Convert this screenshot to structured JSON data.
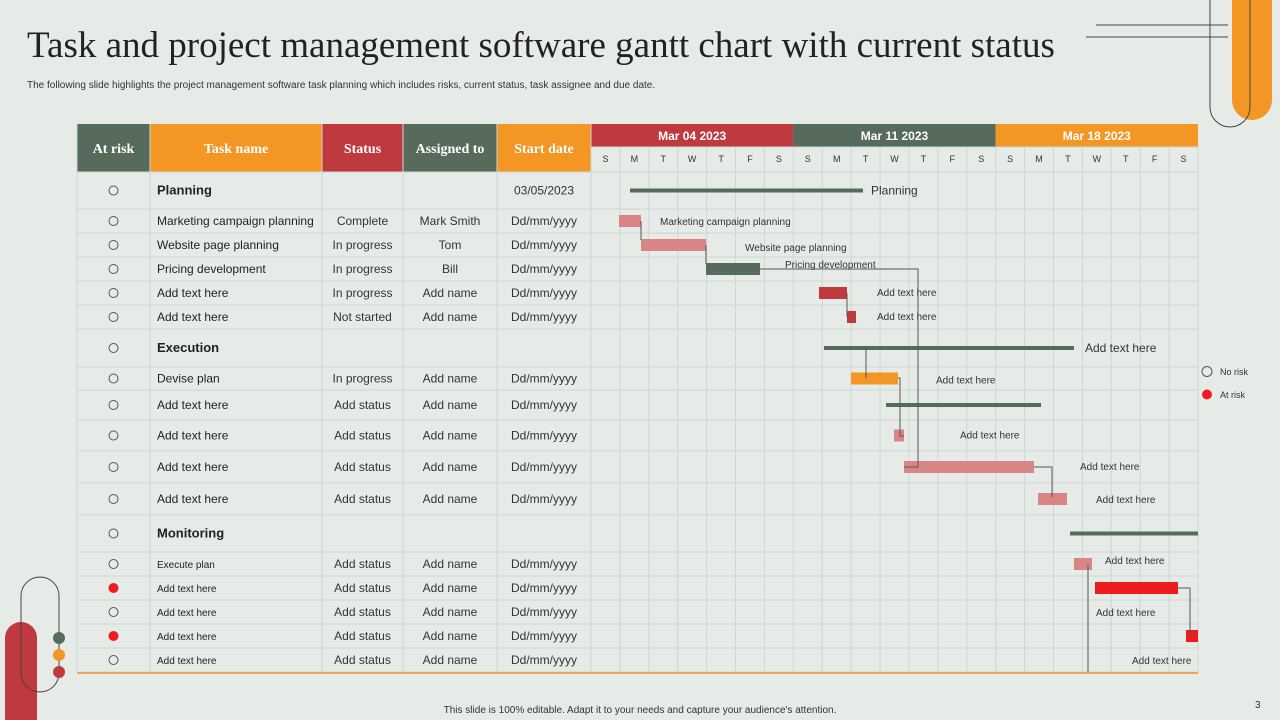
{
  "slide": {
    "title": "Task and project management software gantt chart with current status",
    "subtitle": "The following slide highlights the project management software task planning which includes risks, current status, task assignee and due date.",
    "footer": "This slide is 100% editable. Adapt it to your needs and capture your audience's attention.",
    "page_number": "3"
  },
  "colors": {
    "green_dark": "#566b5c",
    "orange": "#f39623",
    "red": "#be3a3e",
    "pink": "#d98585",
    "bright_red": "#ee1c1c"
  },
  "headers": {
    "at_risk": "At risk",
    "task_name": "Task name",
    "status": "Status",
    "assigned_to": "Assigned to",
    "start_date": "Start date"
  },
  "weeks": [
    "Mar 04 2023",
    "Mar 11 2023",
    "Mar 18 2023"
  ],
  "days": [
    "S",
    "M",
    "T",
    "W",
    "T",
    "F",
    "S",
    "S",
    "M",
    "T",
    "W",
    "T",
    "F",
    "S",
    "S",
    "M",
    "T",
    "W",
    "T",
    "F",
    "S"
  ],
  "legend": {
    "no_risk": "No risk",
    "at_risk": "At risk"
  },
  "rows": [
    {
      "risk": "none",
      "task": "Planning",
      "group": true,
      "status": "",
      "assigned": "",
      "start": "03/05/2023",
      "label": "Planning"
    },
    {
      "risk": "none",
      "task": "Marketing campaign planning",
      "status": "Complete",
      "assigned": "Mark Smith",
      "start": "Dd/mm/yyyy",
      "label": "Marketing campaign planning"
    },
    {
      "risk": "none",
      "task": "Website page planning",
      "status": "In progress",
      "assigned": "Tom",
      "start": "Dd/mm/yyyy",
      "label": "Website page planning"
    },
    {
      "risk": "none",
      "task": "Pricing development",
      "status": "In progress",
      "assigned": "Bill",
      "start": "Dd/mm/yyyy",
      "label": "Pricing development"
    },
    {
      "risk": "none",
      "task": "Add text here",
      "status": "In progress",
      "assigned": "Add name",
      "start": "Dd/mm/yyyy",
      "label": "Add text here"
    },
    {
      "risk": "none",
      "task": "Add text here",
      "status": "Not started",
      "assigned": "Add name",
      "start": "Dd/mm/yyyy",
      "label": "Add text here"
    },
    {
      "risk": "none",
      "task": "Execution",
      "group": true,
      "status": "",
      "assigned": "",
      "start": "",
      "label": "Add text here"
    },
    {
      "risk": "none",
      "task": "Devise plan",
      "status": "In progress",
      "assigned": "Add name",
      "start": "Dd/mm/yyyy",
      "label": "Add text here"
    },
    {
      "risk": "none",
      "task": "Add text here",
      "status": "Add status",
      "assigned": "Add name",
      "start": "Dd/mm/yyyy",
      "label": ""
    },
    {
      "risk": "none",
      "task": "Add text here",
      "status": "Add status",
      "assigned": "Add name",
      "start": "Dd/mm/yyyy",
      "label": "Add text here"
    },
    {
      "risk": "none",
      "task": "Add text here",
      "status": "Add status",
      "assigned": "Add name",
      "start": "Dd/mm/yyyy",
      "label": "Add text here"
    },
    {
      "risk": "none",
      "task": "Add text here",
      "status": "Add status",
      "assigned": "Add name",
      "start": "Dd/mm/yyyy",
      "label": "Add text here"
    },
    {
      "risk": "none",
      "task": "Monitoring",
      "group": true,
      "status": "",
      "assigned": "",
      "start": "",
      "label": ""
    },
    {
      "risk": "none",
      "task": "Execute plan",
      "status": "Add status",
      "assigned": "Add name",
      "start": "Dd/mm/yyyy",
      "label": "Add text here"
    },
    {
      "risk": "at",
      "task": "Add text here",
      "status": "Add status",
      "assigned": "Add name",
      "start": "Dd/mm/yyyy",
      "label": ""
    },
    {
      "risk": "none",
      "task": "Add text here",
      "status": "Add status",
      "assigned": "Add name",
      "start": "Dd/mm/yyyy",
      "label": "Add text here"
    },
    {
      "risk": "at",
      "task": "Add text here",
      "status": "Add status",
      "assigned": "Add name",
      "start": "Dd/mm/yyyy",
      "label": ""
    },
    {
      "risk": "none",
      "task": "Add text here",
      "status": "Add status",
      "assigned": "Add name",
      "start": "Dd/mm/yyyy",
      "label": "Add text here"
    }
  ]
}
